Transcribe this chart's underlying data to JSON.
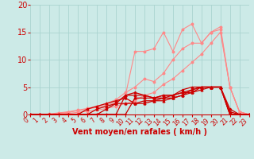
{
  "background_color": "#cceae7",
  "grid_color": "#aad4d0",
  "xlabel": "Vent moyen/en rafales ( km/h )",
  "xlim": [
    0,
    23
  ],
  "ylim": [
    0,
    20
  ],
  "yticks": [
    0,
    5,
    10,
    15,
    20
  ],
  "xticks": [
    0,
    1,
    2,
    3,
    4,
    5,
    6,
    7,
    8,
    9,
    10,
    11,
    12,
    13,
    14,
    15,
    16,
    17,
    18,
    19,
    20,
    21,
    22,
    23
  ],
  "line1_x": [
    0,
    1,
    2,
    3,
    4,
    5,
    6,
    7,
    8,
    9,
    10,
    11,
    12,
    13,
    14,
    15,
    16,
    17,
    18,
    19,
    20,
    21,
    22,
    23
  ],
  "line1_y": [
    0,
    0,
    0,
    0,
    0,
    0,
    0,
    0,
    0,
    0,
    3.5,
    3.5,
    3.5,
    3.0,
    3.5,
    3.5,
    4.0,
    4.5,
    5.0,
    5.0,
    5.0,
    1.0,
    0,
    0
  ],
  "line2_x": [
    0,
    1,
    2,
    3,
    4,
    5,
    6,
    7,
    8,
    9,
    10,
    11,
    12,
    13,
    14,
    15,
    16,
    17,
    18,
    19,
    20,
    21,
    22,
    23
  ],
  "line2_y": [
    0,
    0,
    0,
    0,
    0,
    0,
    0,
    0,
    0,
    0,
    0,
    3.0,
    3.0,
    3.0,
    3.0,
    3.5,
    4.0,
    4.0,
    4.5,
    5.0,
    5.0,
    0,
    0,
    0
  ],
  "line3_x": [
    0,
    1,
    2,
    3,
    4,
    5,
    6,
    7,
    8,
    9,
    10,
    11,
    12,
    13,
    14,
    15,
    16,
    17,
    18,
    19,
    20,
    21,
    22,
    23
  ],
  "line3_y": [
    0,
    0,
    0,
    0,
    0,
    0,
    0,
    1.0,
    1.5,
    2.0,
    2.0,
    2.0,
    2.0,
    2.5,
    2.5,
    3.0,
    3.5,
    4.0,
    5.0,
    5.0,
    5.0,
    0,
    0,
    0
  ],
  "line4_x": [
    0,
    1,
    2,
    3,
    4,
    5,
    6,
    7,
    8,
    9,
    10,
    11,
    12,
    13,
    14,
    15,
    16,
    17,
    18,
    19,
    20,
    21,
    22,
    23
  ],
  "line4_y": [
    0,
    0,
    0,
    0,
    0,
    0,
    1.0,
    1.5,
    2.0,
    2.5,
    3.0,
    2.0,
    2.5,
    2.5,
    3.0,
    3.0,
    3.5,
    4.5,
    5.0,
    5.0,
    5.0,
    0,
    0,
    0
  ],
  "line5_x": [
    0,
    1,
    2,
    3,
    4,
    5,
    6,
    7,
    8,
    9,
    10,
    11,
    12,
    13,
    14,
    15,
    16,
    17,
    18,
    19,
    20,
    21,
    22,
    23
  ],
  "line5_y": [
    0,
    0,
    0,
    0,
    0,
    0,
    0,
    0,
    1.0,
    2.0,
    3.5,
    4.0,
    3.5,
    3.0,
    3.5,
    3.5,
    4.5,
    5.0,
    5.0,
    5.0,
    5.0,
    0.5,
    0,
    0
  ],
  "lineA_x": [
    0,
    1,
    2,
    3,
    4,
    5,
    6,
    7,
    8,
    9,
    10,
    11,
    12,
    13,
    14,
    15,
    16,
    17,
    18,
    19,
    20,
    21,
    22,
    23
  ],
  "lineA_y": [
    0,
    0,
    0,
    0.2,
    0.4,
    0.7,
    1.0,
    1.3,
    1.7,
    2.2,
    3.5,
    11.5,
    11.5,
    12.0,
    15.0,
    11.5,
    15.5,
    16.5,
    13.0,
    15.0,
    16.0,
    5.0,
    0.5,
    0
  ],
  "lineB_x": [
    0,
    1,
    2,
    3,
    4,
    5,
    6,
    7,
    8,
    9,
    10,
    11,
    12,
    13,
    14,
    15,
    16,
    17,
    18,
    19,
    20,
    21,
    22,
    23
  ],
  "lineB_y": [
    0,
    0,
    0.1,
    0.3,
    0.5,
    0.8,
    1.1,
    1.5,
    2.0,
    2.7,
    4.0,
    5.0,
    6.5,
    6.0,
    7.5,
    10.0,
    12.0,
    13.0,
    13.0,
    15.0,
    15.5,
    5.0,
    0.5,
    0
  ],
  "lineC_x": [
    0,
    1,
    2,
    3,
    4,
    5,
    6,
    7,
    8,
    9,
    10,
    11,
    12,
    13,
    14,
    15,
    16,
    17,
    18,
    19,
    20,
    21,
    22,
    23
  ],
  "lineC_y": [
    0,
    0,
    0,
    0.1,
    0.2,
    0.4,
    0.6,
    0.8,
    1.1,
    1.5,
    2.0,
    2.5,
    3.5,
    4.0,
    5.5,
    6.5,
    8.0,
    9.5,
    11.0,
    13.0,
    15.0,
    5.0,
    0.5,
    0
  ],
  "line_color_dark": "#cc0000",
  "line_color_light": "#ff8888",
  "tick_color": "#cc0000",
  "label_color": "#cc0000",
  "xlabel_fontsize": 7,
  "ytick_fontsize": 7,
  "xtick_fontsize": 5.5
}
